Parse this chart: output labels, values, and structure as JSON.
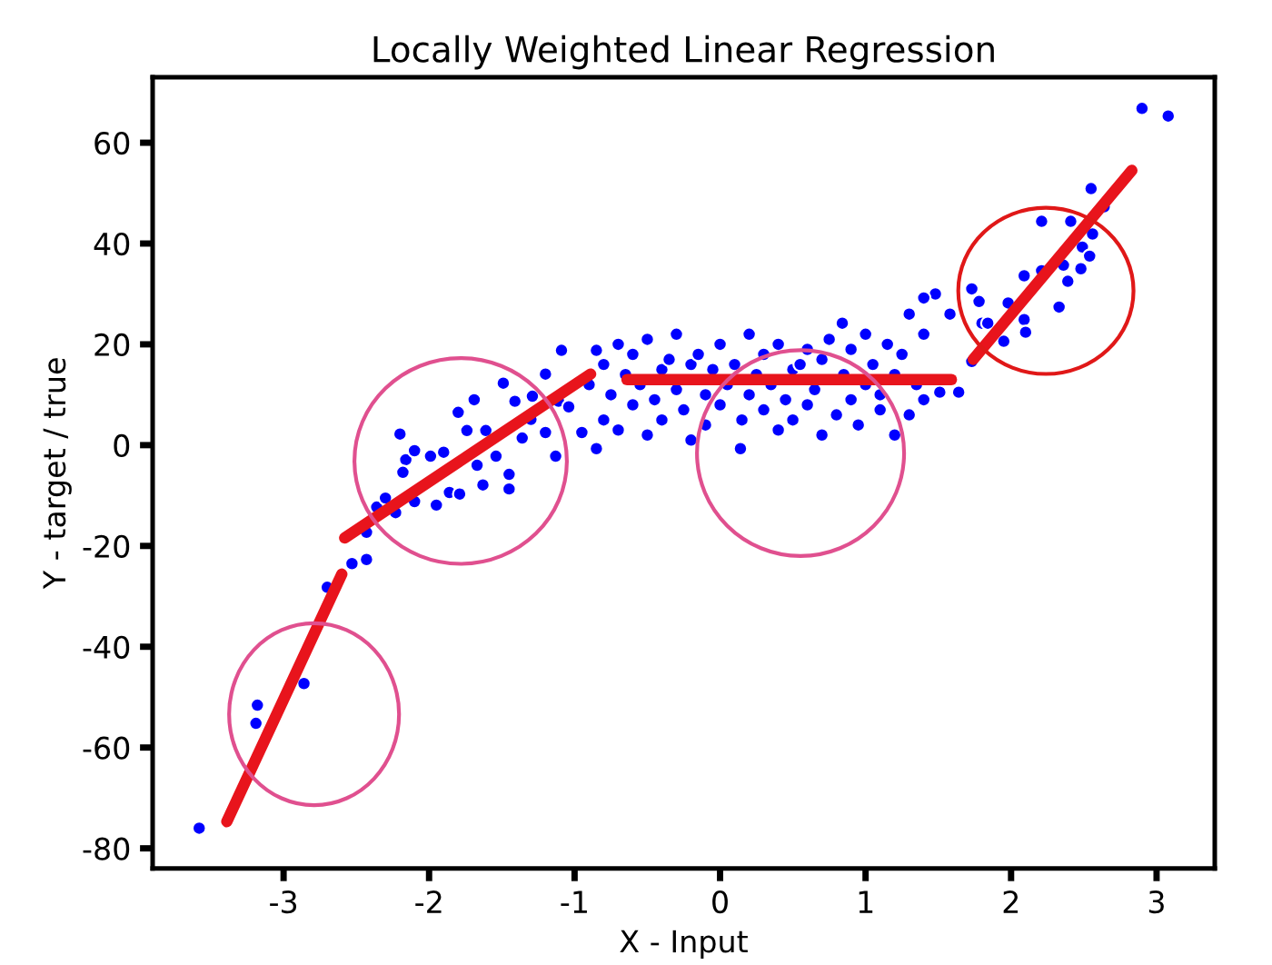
{
  "chart_data": {
    "type": "scatter",
    "title": "Locally Weighted Linear Regression",
    "xlabel": "X - Input",
    "ylabel": "Y - target / true",
    "xlim": [
      -3.9,
      3.4
    ],
    "ylim": [
      -84,
      73
    ],
    "xticks": [
      -3,
      -2,
      -1,
      0,
      1,
      2,
      3
    ],
    "yticks": [
      -80,
      -60,
      -40,
      -20,
      0,
      20,
      40,
      60
    ],
    "grid": false,
    "legend": false,
    "series": [
      {
        "color": "#0000ff",
        "marker": "circle",
        "x": [
          -3.58,
          -3.18,
          -3.19,
          -2.86,
          -2.7,
          -2.53,
          -2.43,
          -2.43,
          -2.36,
          -2.3,
          -2.23,
          -2.2,
          -2.16,
          -2.18,
          -2.1,
          -2.1,
          -1.99,
          -1.95,
          -1.9,
          -1.86,
          -1.8,
          -1.79,
          -1.69,
          -1.74,
          -1.61,
          -1.67,
          -1.63,
          -1.49,
          -1.45,
          -1.45,
          -1.54,
          -1.41,
          -1.36,
          -1.3,
          -1.29,
          -1.2,
          -1.2,
          -1.13,
          -1.11,
          -1.09,
          -1.04,
          -0.95,
          -0.85,
          -0.85,
          -0.9,
          -0.8,
          -0.8,
          -0.75,
          -0.7,
          -0.7,
          -0.65,
          -0.6,
          -0.6,
          -0.55,
          -0.5,
          -0.5,
          -0.45,
          -0.4,
          -0.4,
          -0.35,
          -0.3,
          -0.3,
          -0.25,
          -0.2,
          -0.2,
          -0.15,
          -0.1,
          -0.1,
          -0.05,
          0,
          0,
          0.05,
          0.1,
          0.14,
          0.15,
          0.2,
          0.2,
          0.25,
          0.3,
          0.3,
          0.35,
          0.4,
          0.4,
          0.45,
          0.5,
          0.5,
          0.55,
          0.6,
          0.6,
          0.65,
          0.7,
          0.7,
          0.75,
          0.8,
          0.84,
          0.85,
          0.9,
          0.9,
          0.95,
          1,
          1,
          1.05,
          1.1,
          1.1,
          1.15,
          1.2,
          1.2,
          1.25,
          1.3,
          1.3,
          1.35,
          1.4,
          1.4,
          1.48,
          1.4,
          1.51,
          1.58,
          1.64,
          1.73,
          1.73,
          1.78,
          1.8,
          1.84,
          1.95,
          1.98,
          2.09,
          2.09,
          2.1,
          2.21,
          2.21,
          2.33,
          2.36,
          2.39,
          2.41,
          2.48,
          2.49,
          2.54,
          2.55,
          2.56,
          2.64,
          2.9,
          3.08
        ],
        "values": [
          -76,
          -51.6,
          -55.2,
          -47.3,
          -28.2,
          -23.5,
          -22.7,
          -17.3,
          -12.3,
          -10.5,
          -13.4,
          2.2,
          -2.9,
          -5.4,
          -1.1,
          -11.2,
          -2.2,
          -11.9,
          -1.4,
          -9.4,
          6.5,
          -9.7,
          9,
          2.9,
          2.9,
          -4,
          -7.9,
          12.3,
          -5.8,
          -8.7,
          -2.2,
          8.7,
          1.4,
          5.1,
          9.7,
          14.1,
          2.5,
          -2.2,
          8.7,
          18.8,
          7.6,
          2.5,
          18.8,
          -0.7,
          12,
          5,
          16,
          10,
          20,
          3,
          14,
          8,
          18,
          12,
          2,
          21,
          9,
          15,
          5,
          17,
          11,
          22,
          7,
          16,
          1,
          18,
          10,
          4,
          15,
          8,
          20,
          12,
          16,
          -0.7,
          5,
          10,
          22,
          14,
          7,
          18,
          12,
          3,
          20,
          9,
          15,
          5,
          16,
          19,
          8,
          11,
          2,
          17,
          21,
          6,
          24.2,
          14,
          9,
          19,
          4,
          12,
          22,
          16,
          7,
          10,
          20,
          2,
          14,
          18,
          6,
          26,
          12,
          22,
          9,
          30,
          29.2,
          10.5,
          26,
          10.5,
          31,
          16.6,
          28.5,
          24.2,
          24.2,
          20.6,
          28.2,
          33.6,
          24.9,
          22.4,
          44.4,
          34.6,
          27.4,
          35.7,
          32.5,
          44.4,
          35,
          39.3,
          37.5,
          50.9,
          41.9,
          47.3,
          66.8,
          65.3
        ]
      },
      {
        "type": "line",
        "color": "#e8141c",
        "x": [
          -3.39,
          -2.6
        ],
        "values": [
          -74.7,
          -25.6
        ]
      },
      {
        "type": "line",
        "color": "#e8141c",
        "x": [
          -2.58,
          -0.89
        ],
        "values": [
          -18.4,
          14.1
        ]
      },
      {
        "type": "line",
        "color": "#e8141c",
        "x": [
          -0.64,
          1.59
        ],
        "values": [
          13,
          13
        ]
      },
      {
        "type": "line",
        "color": "#e8141c",
        "x": [
          1.74,
          2.83
        ],
        "values": [
          17,
          54.5
        ]
      }
    ]
  }
}
